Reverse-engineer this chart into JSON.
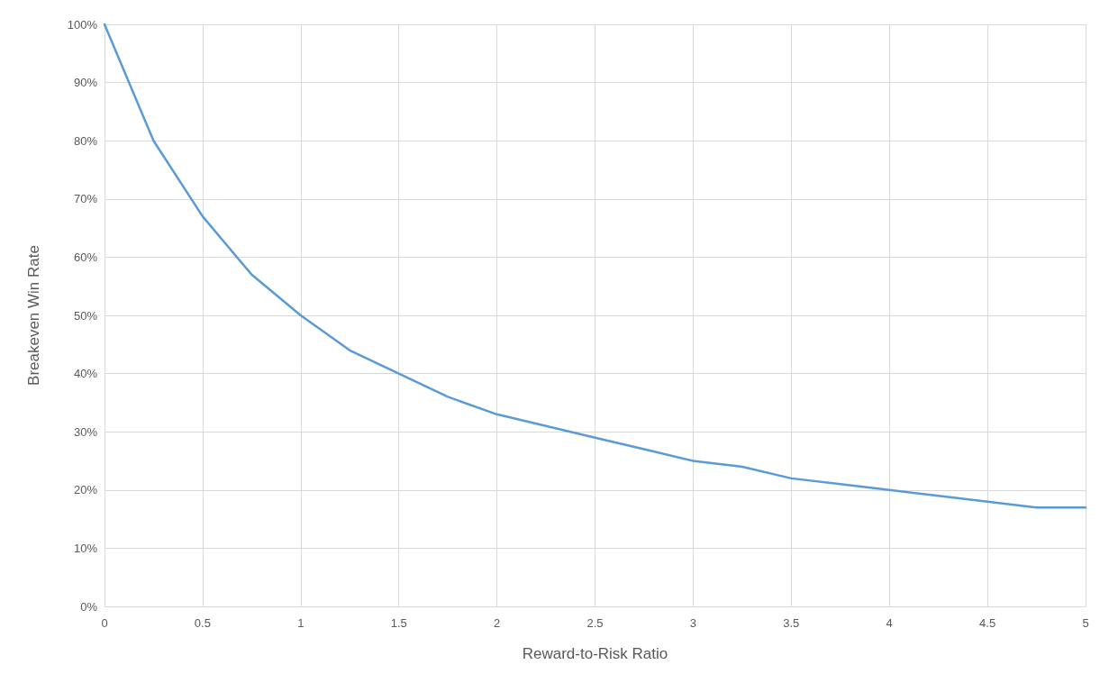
{
  "chart_data": {
    "type": "line",
    "xlabel": "Reward-to-Risk Ratio",
    "ylabel": "Breakeven Win Rate",
    "x": [
      0,
      0.25,
      0.5,
      0.75,
      1,
      1.25,
      1.5,
      1.75,
      2,
      2.25,
      2.5,
      2.75,
      3,
      3.25,
      3.5,
      3.75,
      4,
      4.25,
      4.5,
      4.75,
      5
    ],
    "series": [
      {
        "color": "#5b9bd5",
        "values": [
          100,
          80,
          67,
          57,
          50,
          44,
          40,
          36,
          33,
          31,
          29,
          27,
          25,
          24,
          22,
          21,
          20,
          19,
          18,
          17,
          17
        ]
      }
    ],
    "xlim": [
      0,
      5
    ],
    "xticks": [
      0,
      0.5,
      1,
      1.5,
      2,
      2.5,
      3,
      3.5,
      4,
      4.5,
      5
    ],
    "ylim": [
      0,
      100
    ],
    "yticks": [
      {
        "value": 0,
        "label": "0%"
      },
      {
        "value": 10,
        "label": "10%"
      },
      {
        "value": 20,
        "label": "20%"
      },
      {
        "value": 30,
        "label": "30%"
      },
      {
        "value": 40,
        "label": "40%"
      },
      {
        "value": 50,
        "label": "50%"
      },
      {
        "value": 60,
        "label": "60%"
      },
      {
        "value": 70,
        "label": "70%"
      },
      {
        "value": 80,
        "label": "80%"
      },
      {
        "value": 90,
        "label": "90%"
      },
      {
        "value": 100,
        "label": "100%"
      }
    ],
    "grid": true,
    "marker": "none",
    "line_style": "solid"
  }
}
